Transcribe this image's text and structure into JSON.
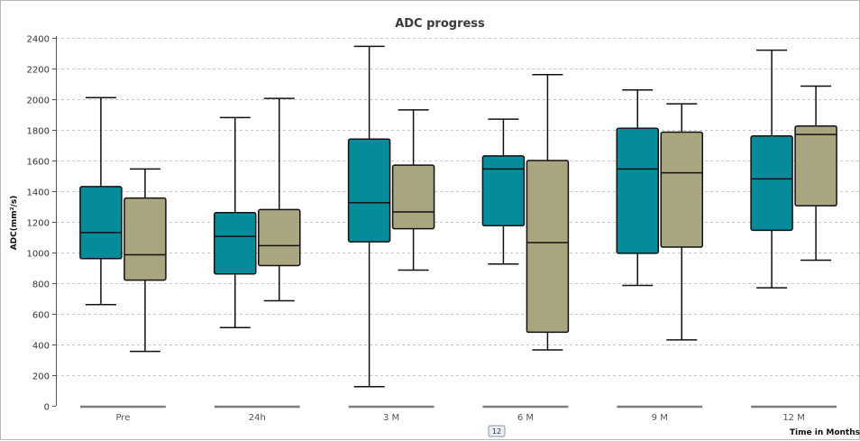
{
  "chart_data": {
    "type": "box",
    "title": "ADC progress",
    "xlabel": "Time in Months",
    "ylabel": "ADC(mm²/s)",
    "categories": [
      "Pre",
      "24h",
      "3 M",
      "6 M",
      "9 M",
      "12 M"
    ],
    "ylim": [
      0,
      2400
    ],
    "yticks": [
      0,
      200,
      400,
      600,
      800,
      1000,
      1200,
      1400,
      1600,
      1800,
      2000,
      2200,
      2400
    ],
    "grid": true,
    "legend_chip": "12",
    "series": [
      {
        "color": "#058b9a",
        "boxes": [
          {
            "min": 660,
            "q1": 960,
            "median": 1130,
            "q3": 1430,
            "max": 2010
          },
          {
            "min": 510,
            "q1": 860,
            "median": 1105,
            "q3": 1260,
            "max": 1880
          },
          {
            "min": 125,
            "q1": 1070,
            "median": 1325,
            "q3": 1740,
            "max": 2345
          },
          {
            "min": 925,
            "q1": 1175,
            "median": 1545,
            "q3": 1630,
            "max": 1870
          },
          {
            "min": 785,
            "q1": 995,
            "median": 1545,
            "q3": 1810,
            "max": 2060
          },
          {
            "min": 770,
            "q1": 1145,
            "median": 1480,
            "q3": 1760,
            "max": 2320
          }
        ]
      },
      {
        "color": "#a8a57f",
        "boxes": [
          {
            "min": 355,
            "q1": 820,
            "median": 985,
            "q3": 1355,
            "max": 1545
          },
          {
            "min": 685,
            "q1": 915,
            "median": 1045,
            "q3": 1280,
            "max": 2005
          },
          {
            "min": 885,
            "q1": 1155,
            "median": 1265,
            "q3": 1570,
            "max": 1930
          },
          {
            "min": 365,
            "q1": 480,
            "median": 1065,
            "q3": 1600,
            "max": 2160
          },
          {
            "min": 430,
            "q1": 1035,
            "median": 1520,
            "q3": 1785,
            "max": 1970
          },
          {
            "min": 950,
            "q1": 1305,
            "median": 1770,
            "q3": 1825,
            "max": 2085
          }
        ]
      }
    ]
  }
}
